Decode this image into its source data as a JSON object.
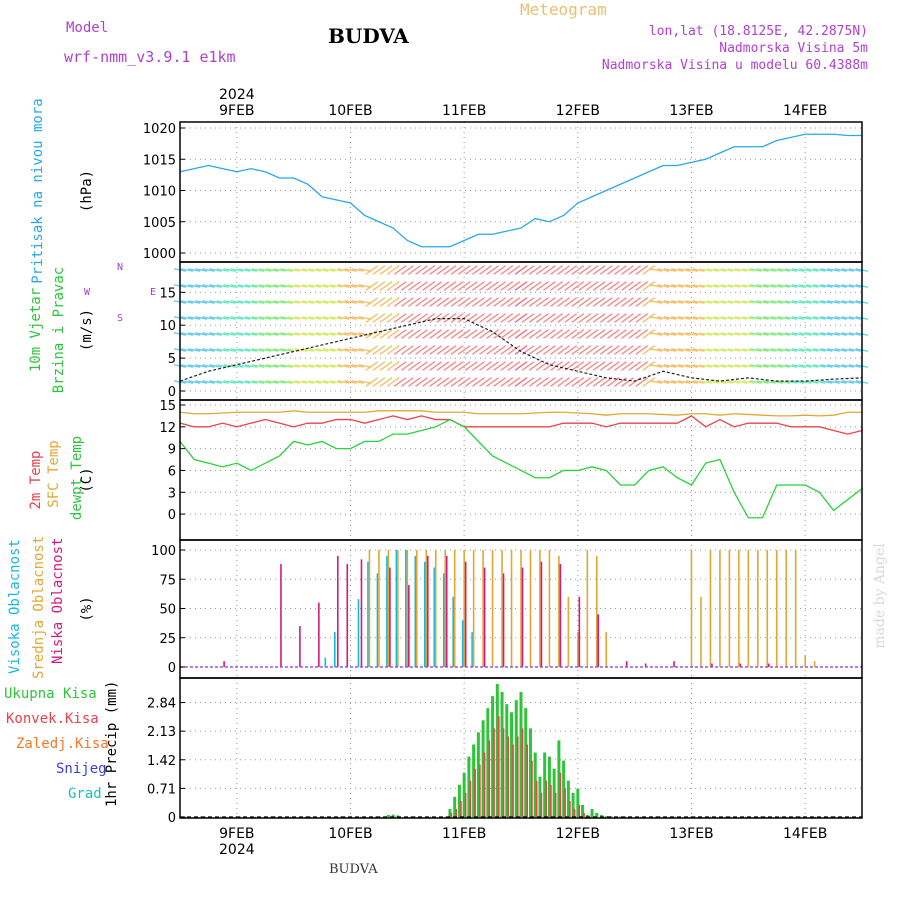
{
  "header": {
    "model_label": "Model",
    "model_name": "wrf-nmm_v3.9.1 e1km",
    "location": "BUDVA",
    "meteogram": "Meteogram",
    "lonlat": "lon,lat (18.8125E, 42.2875N)",
    "elevation": "Nadmorska Visina 5m",
    "model_elevation": "Nadmorska Visina u modelu 60.4388m"
  },
  "footer": {
    "location": "BUDVA",
    "credit": "made by Angel"
  },
  "colors": {
    "pressure": "#2aa7e8",
    "temp2m": "#e8434a",
    "sfctemp": "#e0a833",
    "dewpt": "#27d23a",
    "cloud_high": "#1ab7e0",
    "cloud_mid": "#e0a833",
    "cloud_low": "#d21a7a",
    "precip_total": "#2ec43a",
    "precip_conv": "#e8434a",
    "precip_frz": "#f07a2a",
    "snow": "#3c3cdc",
    "grad": "#20c0b0",
    "wind_label": "#a040d0"
  },
  "chart_data": [
    {
      "type": "line",
      "name": "pressure",
      "ylabel_lines": [
        "Pritisak na nivou mora"
      ],
      "unit": "(hPa)",
      "ylim": [
        1000,
        1020
      ],
      "yticks": [
        "1000",
        "1005",
        "1010",
        "1015",
        "1020"
      ],
      "x": [
        0,
        3,
        6,
        9,
        12,
        15,
        18,
        21,
        24,
        27,
        30,
        33,
        36,
        39,
        42,
        45,
        48,
        51,
        54,
        57,
        60,
        63,
        66,
        69,
        72,
        75,
        78,
        81,
        84,
        87,
        90,
        93,
        96,
        99,
        102,
        105,
        108,
        111,
        114,
        117,
        120,
        123,
        126,
        129,
        132,
        135,
        138,
        141,
        144
      ],
      "values": [
        1013,
        1013.5,
        1014,
        1013.5,
        1013,
        1013.5,
        1013,
        1012,
        1012,
        1011,
        1009,
        1008.5,
        1008,
        1006,
        1005,
        1004,
        1002,
        1001,
        1001,
        1001,
        1002,
        1003,
        1003,
        1003.5,
        1004,
        1005.5,
        1005,
        1006,
        1008,
        1009,
        1010,
        1011,
        1012,
        1013,
        1014,
        1014,
        1014.5,
        1015,
        1016,
        1017,
        1017,
        1017,
        1018,
        1018.5,
        1019,
        1019,
        1019,
        1018.8,
        1018.8
      ]
    },
    {
      "type": "line",
      "name": "wind",
      "ylabel_lines": [
        "10m Vjetar",
        "Brzina i Pravac"
      ],
      "unit": "(m/s)",
      "ylim": [
        0,
        19
      ],
      "yticks": [
        "0",
        "5",
        "10",
        "15"
      ],
      "compass": [
        "N",
        "E",
        "S",
        "W"
      ],
      "x": [
        0,
        6,
        12,
        18,
        24,
        30,
        36,
        42,
        48,
        54,
        60,
        66,
        72,
        78,
        84,
        90,
        96,
        102,
        108,
        114,
        120,
        126,
        132,
        138,
        144
      ],
      "values": [
        1.5,
        3,
        4,
        5,
        6,
        7,
        8,
        9,
        10,
        11,
        11,
        9,
        6,
        4,
        3,
        2,
        1.5,
        3,
        2,
        1.5,
        2,
        1.5,
        1.5,
        1.8,
        2
      ]
    },
    {
      "type": "line",
      "name": "temperature",
      "ylabel_lines": [
        "2m Temp",
        "SFC Temp",
        "dewpt Temp"
      ],
      "unit": "(C)",
      "ylim": [
        -1.5,
        15
      ],
      "yticks": [
        "0",
        "3",
        "6",
        "9",
        "12",
        "15"
      ],
      "x": [
        0,
        3,
        6,
        9,
        12,
        15,
        18,
        21,
        24,
        27,
        30,
        33,
        36,
        39,
        42,
        45,
        48,
        51,
        54,
        57,
        60,
        63,
        66,
        69,
        72,
        75,
        78,
        81,
        84,
        87,
        90,
        93,
        96,
        99,
        102,
        105,
        108,
        111,
        114,
        117,
        120,
        123,
        126,
        129,
        132,
        135,
        138,
        141,
        144
      ],
      "series": [
        {
          "name": "2m Temp",
          "values": [
            12.5,
            12,
            12,
            12.5,
            12,
            12.5,
            13,
            12.5,
            12,
            12.5,
            12.5,
            13,
            13,
            12.5,
            13,
            13.5,
            13,
            13.5,
            13,
            13,
            12,
            12,
            12,
            12,
            12,
            12,
            12,
            12.5,
            12.5,
            12.5,
            12,
            12.5,
            12.5,
            12.5,
            12.5,
            12.5,
            13.5,
            12,
            13,
            12,
            12.5,
            12.5,
            12.5,
            12,
            12,
            12,
            11.5,
            11,
            11.5
          ]
        },
        {
          "name": "SFC Temp",
          "values": [
            14,
            13.8,
            13.8,
            13.9,
            14,
            14,
            14,
            14,
            14.2,
            14,
            14,
            14,
            14,
            14,
            14.2,
            14.2,
            14.2,
            14.2,
            14,
            14,
            14,
            13.8,
            13.8,
            13.8,
            13.8,
            13.9,
            14,
            14,
            13.9,
            13.8,
            13.6,
            13.8,
            13.8,
            13.8,
            13.7,
            13.6,
            13.8,
            13.8,
            13.6,
            13.8,
            13.7,
            13.6,
            13.5,
            13.5,
            13.6,
            13.5,
            13.6,
            14,
            14
          ]
        },
        {
          "name": "dewpt Temp",
          "values": [
            10,
            7.5,
            7,
            6.5,
            7,
            6,
            7,
            8,
            10,
            9.5,
            10,
            9,
            9,
            10,
            10,
            11,
            11,
            11.5,
            12,
            13,
            12,
            10,
            8,
            7,
            6,
            5,
            5,
            6,
            6,
            6.5,
            6,
            4,
            4,
            6,
            6.5,
            5,
            4,
            7,
            7.5,
            3,
            -0.5,
            -0.5,
            4,
            4,
            4,
            3,
            0.5,
            2,
            3.5
          ]
        }
      ]
    },
    {
      "type": "bar",
      "name": "cloud",
      "ylabel_lines": [
        "Visoka Oblacnost",
        "Srednja Oblacnost",
        "Niska Oblacnost"
      ],
      "unit": "(%)",
      "ylim": [
        0,
        100
      ],
      "yticks": [
        "0",
        "25",
        "50",
        "75",
        "100"
      ],
      "series": [
        {
          "name": "Visoka Oblacnost",
          "x": [
            31,
            33,
            38,
            40,
            42,
            44,
            46,
            48,
            50,
            52,
            54,
            56,
            58,
            60,
            62
          ],
          "values": [
            8,
            30,
            58,
            90,
            80,
            95,
            100,
            100,
            95,
            90,
            85,
            80,
            60,
            40,
            30
          ]
        },
        {
          "name": "Srednja Oblacnost",
          "x": [
            40,
            42,
            44,
            46,
            48,
            50,
            52,
            54,
            56,
            58,
            60,
            62,
            64,
            66,
            68,
            70,
            72,
            74,
            76,
            78,
            80,
            82,
            84,
            86,
            88,
            90,
            108,
            110,
            112,
            114,
            116,
            118,
            120,
            122,
            124,
            126,
            128,
            130,
            132,
            134
          ],
          "values": [
            100,
            100,
            100,
            100,
            100,
            100,
            100,
            100,
            100,
            100,
            100,
            100,
            100,
            100,
            100,
            100,
            100,
            100,
            100,
            100,
            95,
            60,
            30,
            100,
            95,
            30,
            100,
            60,
            100,
            100,
            100,
            100,
            100,
            100,
            100,
            100,
            100,
            100,
            10,
            5
          ]
        },
        {
          "name": "Niska Oblacnost",
          "x": [
            9,
            21,
            25,
            29,
            33,
            35,
            38,
            44,
            48,
            52,
            56,
            60,
            64,
            68,
            72,
            76,
            80,
            84,
            88,
            94,
            98,
            104,
            112,
            118,
            124
          ],
          "values": [
            5,
            88,
            35,
            55,
            95,
            88,
            92,
            85,
            70,
            95,
            95,
            90,
            85,
            80,
            85,
            90,
            88,
            60,
            45,
            5,
            3,
            5,
            3,
            3,
            3
          ]
        }
      ]
    },
    {
      "type": "bar",
      "name": "precip",
      "ylabel_lines": [
        "Ukupna Kisa",
        "Konvek.Kisa",
        "Zaledj.Kisa",
        "Snijeg",
        "Grad"
      ],
      "unit": "1hr Precip (mm)",
      "ylim": [
        0,
        3.3
      ],
      "yticks": [
        "0",
        "0.71",
        "1.42",
        "2.13",
        "2.84"
      ],
      "series": [
        {
          "name": "Ukupna Kisa",
          "x": [
            44,
            45,
            46,
            57,
            58,
            59,
            60,
            61,
            62,
            63,
            64,
            65,
            66,
            67,
            68,
            69,
            70,
            71,
            72,
            73,
            74,
            75,
            76,
            77,
            78,
            79,
            80,
            81,
            82,
            83,
            84,
            85,
            86,
            87,
            88,
            89,
            90,
            91,
            92,
            93,
            94,
            95
          ],
          "values": [
            0.05,
            0.06,
            0.04,
            0.2,
            0.5,
            0.8,
            1.1,
            1.5,
            1.8,
            2.1,
            2.4,
            2.7,
            3.0,
            3.3,
            3.1,
            2.8,
            2.6,
            2.9,
            3.1,
            2.7,
            2.2,
            1.6,
            1.0,
            1.6,
            1.5,
            1.2,
            1.9,
            1.4,
            0.9,
            0.6,
            0.7,
            0.3,
            0.05,
            0.2,
            0.1,
            0.05,
            0.02,
            0.02,
            0.01,
            0.01,
            0.01,
            0.01
          ]
        },
        {
          "name": "Konvek.Kisa",
          "x": [
            57,
            58,
            59,
            60,
            61,
            62,
            63,
            64,
            65,
            66,
            67,
            68,
            69,
            70,
            71,
            72,
            73,
            74,
            75,
            76,
            77,
            78,
            79,
            80,
            81,
            82,
            83,
            84,
            85
          ],
          "values": [
            0.1,
            0.2,
            0.4,
            0.6,
            0.9,
            1.2,
            1.3,
            1.6,
            1.9,
            2.2,
            2.5,
            2.2,
            2.0,
            1.8,
            2.0,
            2.2,
            1.8,
            1.4,
            0.9,
            0.6,
            0.9,
            0.8,
            0.6,
            1.1,
            0.7,
            0.4,
            0.2,
            0.3,
            0.1
          ]
        }
      ]
    }
  ],
  "time_axis": {
    "year": "2024",
    "day_labels": [
      "9FEB",
      "10FEB",
      "11FEB",
      "12FEB",
      "13FEB",
      "14FEB"
    ],
    "day_hours": [
      12,
      36,
      60,
      84,
      108,
      132
    ],
    "xlim": [
      0,
      144
    ]
  }
}
